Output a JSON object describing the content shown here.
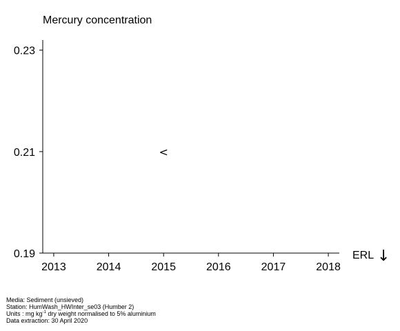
{
  "chart_data": {
    "type": "scatter",
    "title": "Mercury concentration",
    "xlabel": "",
    "ylabel": "",
    "x_ticks": [
      "2013",
      "2014",
      "2015",
      "2016",
      "2017",
      "2018"
    ],
    "xlim": [
      2012.8,
      2018.2
    ],
    "y_ticks": [
      "0.19",
      "0.21",
      "0.23"
    ],
    "ylim": [
      0.19,
      0.232
    ],
    "points": [
      {
        "x": 2015,
        "y": 0.21,
        "marker": "<",
        "note": "less-than"
      }
    ],
    "reference_line": {
      "label": "ERL",
      "marker": "↓"
    },
    "grid": false
  },
  "footer": {
    "media": "Media: Sediment (unsieved)",
    "station": "Station: HumWash_HWInter_se03 (Humber 2)",
    "units_prefix": "Units : mg kg",
    "units_sup": "-1",
    "units_suffix": " dry weight normalised to 5% aluminium",
    "extraction": "Data extraction: 30 April 2020"
  }
}
